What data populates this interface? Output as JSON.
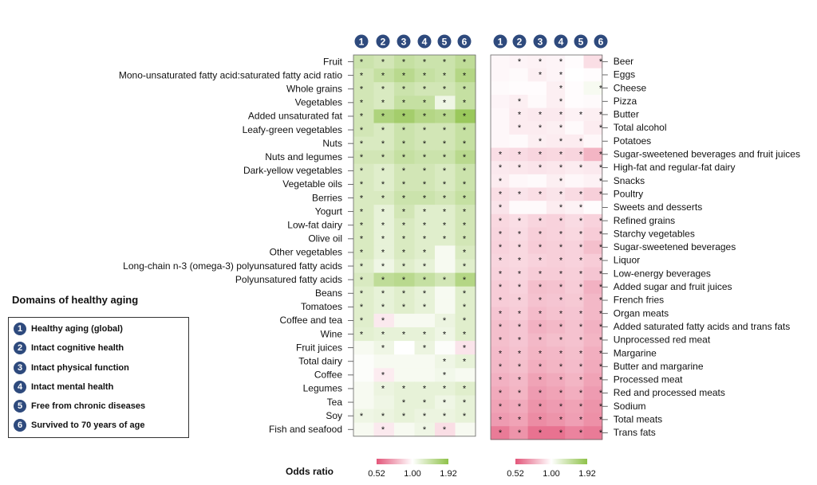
{
  "domains_title": "Domains of healthy aging",
  "domains": [
    {
      "num": "1",
      "label": "Healthy aging (global)"
    },
    {
      "num": "2",
      "label": "Intact cognitive health"
    },
    {
      "num": "3",
      "label": "Intact physical function"
    },
    {
      "num": "4",
      "label": "Intact mental health"
    },
    {
      "num": "5",
      "label": "Free from chronic diseases"
    },
    {
      "num": "6",
      "label": "Survived to 70 years of age"
    }
  ],
  "colorbar": {
    "title": "Odds ratio",
    "ticks": [
      "0.52",
      "1.00",
      "1.92"
    ],
    "low_color": "#e3567a",
    "mid_color": "#ffffff",
    "high_color": "#8fc24a"
  },
  "chart_data": [
    {
      "type": "heatmap",
      "panel": "left",
      "columns": [
        "1",
        "2",
        "3",
        "4",
        "5",
        "6"
      ],
      "rows": [
        "Fruit",
        "Mono-unsaturated fatty acid:saturated fatty acid ratio",
        "Whole grains",
        "Vegetables",
        "Added unsaturated fat",
        "Leafy-green vegetables",
        "Nuts",
        "Nuts and legumes",
        "Dark-yellow vegetables",
        "Vegetable oils",
        "Berries",
        "Yogurt",
        "Low-fat dairy",
        "Olive oil",
        "Other vegetables",
        "Long-chain n-3 (omega-3) polyunsatured fatty acids",
        "Polyunsatured fatty acids",
        "Beans",
        "Tomatoes",
        "Coffee and tea",
        "Wine",
        "Fruit juices",
        "Total dairy",
        "Coffee",
        "Legumes",
        "Tea",
        "Soy",
        "Fish and seafood"
      ],
      "values": [
        [
          1.35,
          1.3,
          1.4,
          1.35,
          1.35,
          1.45
        ],
        [
          1.3,
          1.4,
          1.5,
          1.4,
          1.35,
          1.55
        ],
        [
          1.3,
          1.25,
          1.35,
          1.3,
          1.3,
          1.4
        ],
        [
          1.3,
          1.25,
          1.4,
          1.4,
          1.1,
          1.4
        ],
        [
          1.3,
          1.6,
          1.7,
          1.55,
          1.5,
          1.8
        ],
        [
          1.3,
          1.25,
          1.35,
          1.3,
          1.3,
          1.4
        ],
        [
          1.25,
          1.25,
          1.35,
          1.3,
          1.3,
          1.4
        ],
        [
          1.3,
          1.3,
          1.4,
          1.35,
          1.35,
          1.5
        ],
        [
          1.25,
          1.2,
          1.3,
          1.3,
          1.25,
          1.35
        ],
        [
          1.25,
          1.2,
          1.3,
          1.3,
          1.25,
          1.35
        ],
        [
          1.25,
          1.25,
          1.35,
          1.35,
          1.3,
          1.4
        ],
        [
          1.25,
          1.15,
          1.3,
          1.2,
          1.2,
          1.3
        ],
        [
          1.25,
          1.15,
          1.25,
          1.2,
          1.2,
          1.3
        ],
        [
          1.25,
          1.15,
          1.25,
          1.2,
          1.2,
          1.3
        ],
        [
          1.25,
          1.15,
          1.25,
          1.2,
          1.05,
          1.25
        ],
        [
          1.2,
          1.1,
          1.2,
          1.15,
          1.05,
          1.2
        ],
        [
          1.25,
          1.45,
          1.5,
          1.4,
          1.3,
          1.55
        ],
        [
          1.2,
          1.15,
          1.2,
          1.15,
          1.05,
          1.2
        ],
        [
          1.2,
          1.15,
          1.2,
          1.15,
          1.05,
          1.2
        ],
        [
          1.2,
          0.92,
          1.05,
          1.05,
          1.12,
          1.2
        ],
        [
          1.18,
          1.15,
          1.15,
          1.15,
          1.1,
          1.2
        ],
        [
          1.05,
          1.1,
          1.0,
          1.12,
          1.02,
          0.9
        ],
        [
          1.02,
          1.05,
          1.05,
          1.05,
          1.1,
          1.15
        ],
        [
          1.02,
          0.93,
          1.05,
          1.05,
          1.08,
          1.05
        ],
        [
          1.05,
          1.12,
          1.15,
          1.15,
          1.15,
          1.2
        ],
        [
          1.05,
          1.1,
          1.15,
          1.15,
          1.1,
          1.15
        ],
        [
          1.1,
          1.12,
          1.15,
          1.12,
          1.12,
          1.15
        ],
        [
          1.05,
          0.92,
          1.05,
          1.1,
          0.88,
          1.05
        ]
      ],
      "significant": [
        [
          1,
          1,
          1,
          1,
          1,
          1
        ],
        [
          1,
          1,
          1,
          1,
          1,
          1
        ],
        [
          1,
          1,
          1,
          1,
          1,
          1
        ],
        [
          1,
          1,
          1,
          1,
          1,
          1
        ],
        [
          1,
          1,
          1,
          1,
          1,
          1
        ],
        [
          1,
          1,
          1,
          1,
          1,
          1
        ],
        [
          1,
          1,
          1,
          1,
          1,
          1
        ],
        [
          1,
          1,
          1,
          1,
          1,
          1
        ],
        [
          1,
          1,
          1,
          1,
          1,
          1
        ],
        [
          1,
          1,
          1,
          1,
          1,
          1
        ],
        [
          1,
          1,
          1,
          1,
          1,
          1
        ],
        [
          1,
          1,
          1,
          1,
          1,
          1
        ],
        [
          1,
          1,
          1,
          1,
          1,
          1
        ],
        [
          1,
          1,
          1,
          1,
          1,
          1
        ],
        [
          1,
          1,
          1,
          1,
          0,
          1
        ],
        [
          1,
          1,
          1,
          1,
          0,
          1
        ],
        [
          1,
          1,
          1,
          1,
          1,
          1
        ],
        [
          1,
          1,
          1,
          1,
          0,
          1
        ],
        [
          1,
          1,
          1,
          1,
          0,
          1
        ],
        [
          1,
          1,
          0,
          0,
          1,
          1
        ],
        [
          1,
          1,
          1,
          1,
          1,
          1
        ],
        [
          0,
          1,
          0,
          1,
          0,
          1
        ],
        [
          0,
          0,
          0,
          0,
          1,
          1
        ],
        [
          0,
          1,
          0,
          0,
          1,
          0
        ],
        [
          0,
          1,
          1,
          1,
          1,
          1
        ],
        [
          0,
          0,
          1,
          1,
          1,
          1
        ],
        [
          1,
          1,
          1,
          1,
          1,
          1
        ],
        [
          0,
          1,
          0,
          1,
          1,
          0
        ]
      ]
    },
    {
      "type": "heatmap",
      "panel": "right",
      "columns": [
        "1",
        "2",
        "3",
        "4",
        "5",
        "6"
      ],
      "rows": [
        "Beer",
        "Eggs",
        "Cheese",
        "Pizza",
        "Butter",
        "Total alcohol",
        "Potatoes",
        "Sugar-sweetened beverages and fruit juices",
        "High-fat and regular-fat dairy",
        "Snacks",
        "Poultry",
        "Sweets and desserts",
        "Refined grains",
        "Starchy vegetables",
        "Sugar-sweetened beverages",
        "Liquor",
        "Low-energy beverages",
        "Added sugar and fruit juices",
        "French fries",
        "Organ meats",
        "Added saturated fatty acids and trans fats",
        "Unprocessed red meat",
        "Margarine",
        "Butter and margarine",
        "Processed meat",
        "Red and processed meats",
        "Sodium",
        "Total meats",
        "Trans fats"
      ],
      "values": [
        [
          0.97,
          0.96,
          0.95,
          0.96,
          0.99,
          0.88
        ],
        [
          0.97,
          0.98,
          0.94,
          0.96,
          1.0,
          0.99
        ],
        [
          0.98,
          0.99,
          0.99,
          0.94,
          0.99,
          1.05
        ],
        [
          0.96,
          0.94,
          0.98,
          0.94,
          0.99,
          0.98
        ],
        [
          0.97,
          0.93,
          0.92,
          0.92,
          0.95,
          0.94
        ],
        [
          0.97,
          0.93,
          0.93,
          0.94,
          0.98,
          0.93
        ],
        [
          0.97,
          0.98,
          0.94,
          0.93,
          0.93,
          0.97
        ],
        [
          0.88,
          0.87,
          0.85,
          0.86,
          0.85,
          0.75
        ],
        [
          0.92,
          0.91,
          0.9,
          0.91,
          0.93,
          0.92
        ],
        [
          0.93,
          0.97,
          0.98,
          0.94,
          0.97,
          0.95
        ],
        [
          0.88,
          0.9,
          0.88,
          0.9,
          0.87,
          0.83
        ],
        [
          0.9,
          0.98,
          0.98,
          0.93,
          0.95,
          0.99
        ],
        [
          0.86,
          0.88,
          0.85,
          0.84,
          0.87,
          0.84
        ],
        [
          0.85,
          0.87,
          0.83,
          0.84,
          0.86,
          0.82
        ],
        [
          0.84,
          0.86,
          0.82,
          0.83,
          0.84,
          0.78
        ],
        [
          0.85,
          0.86,
          0.84,
          0.83,
          0.84,
          0.82
        ],
        [
          0.84,
          0.85,
          0.82,
          0.82,
          0.83,
          0.8
        ],
        [
          0.82,
          0.84,
          0.78,
          0.79,
          0.82,
          0.74
        ],
        [
          0.82,
          0.83,
          0.79,
          0.8,
          0.81,
          0.76
        ],
        [
          0.8,
          0.82,
          0.77,
          0.79,
          0.8,
          0.76
        ],
        [
          0.78,
          0.8,
          0.74,
          0.76,
          0.79,
          0.74
        ],
        [
          0.78,
          0.8,
          0.76,
          0.78,
          0.79,
          0.75
        ],
        [
          0.77,
          0.79,
          0.75,
          0.76,
          0.78,
          0.73
        ],
        [
          0.76,
          0.78,
          0.73,
          0.75,
          0.77,
          0.72
        ],
        [
          0.74,
          0.76,
          0.7,
          0.72,
          0.75,
          0.7
        ],
        [
          0.72,
          0.75,
          0.68,
          0.7,
          0.73,
          0.68
        ],
        [
          0.7,
          0.72,
          0.66,
          0.68,
          0.7,
          0.66
        ],
        [
          0.68,
          0.7,
          0.64,
          0.66,
          0.69,
          0.65
        ],
        [
          0.6,
          0.66,
          0.58,
          0.58,
          0.62,
          0.6
        ]
      ],
      "significant": [
        [
          0,
          1,
          1,
          1,
          0,
          1
        ],
        [
          0,
          0,
          1,
          1,
          0,
          0
        ],
        [
          0,
          0,
          0,
          1,
          0,
          1
        ],
        [
          0,
          1,
          0,
          1,
          0,
          0
        ],
        [
          0,
          1,
          1,
          1,
          1,
          1
        ],
        [
          0,
          1,
          1,
          1,
          0,
          1
        ],
        [
          0,
          0,
          1,
          1,
          1,
          0
        ],
        [
          1,
          1,
          1,
          1,
          1,
          1
        ],
        [
          1,
          1,
          1,
          1,
          1,
          1
        ],
        [
          1,
          0,
          0,
          1,
          0,
          1
        ],
        [
          1,
          1,
          1,
          1,
          1,
          1
        ],
        [
          1,
          0,
          0,
          1,
          1,
          0
        ],
        [
          1,
          1,
          1,
          1,
          1,
          1
        ],
        [
          1,
          1,
          1,
          1,
          1,
          1
        ],
        [
          1,
          1,
          1,
          1,
          1,
          1
        ],
        [
          1,
          1,
          1,
          1,
          1,
          1
        ],
        [
          1,
          1,
          1,
          1,
          1,
          1
        ],
        [
          1,
          1,
          1,
          1,
          1,
          1
        ],
        [
          1,
          1,
          1,
          1,
          1,
          1
        ],
        [
          1,
          1,
          1,
          1,
          1,
          1
        ],
        [
          1,
          1,
          1,
          1,
          1,
          1
        ],
        [
          1,
          1,
          1,
          1,
          1,
          1
        ],
        [
          1,
          1,
          1,
          1,
          1,
          1
        ],
        [
          1,
          1,
          1,
          1,
          1,
          1
        ],
        [
          1,
          1,
          1,
          1,
          1,
          1
        ],
        [
          1,
          1,
          1,
          1,
          1,
          1
        ],
        [
          1,
          1,
          1,
          1,
          1,
          1
        ],
        [
          1,
          1,
          1,
          1,
          1,
          1
        ],
        [
          1,
          1,
          1,
          1,
          1,
          1
        ]
      ]
    }
  ]
}
